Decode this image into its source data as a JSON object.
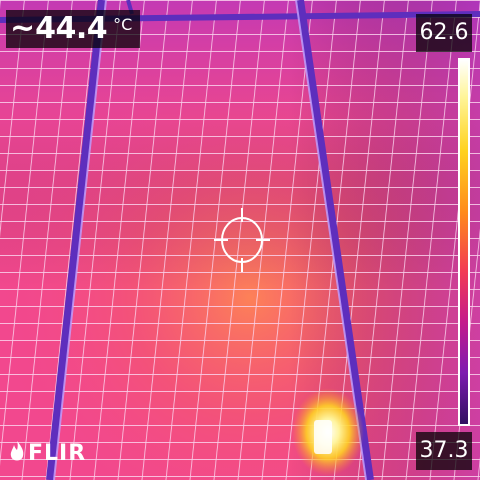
{
  "spot": {
    "prefix": "~",
    "value": "44.4",
    "unit": "°C"
  },
  "scale": {
    "max": "62.6",
    "min": "37.3"
  },
  "brand": {
    "name": "FLIR"
  },
  "colors": {
    "background": "#f64a8c",
    "grid": "#f8d9ee",
    "frame": "#5e2ebd",
    "hotspot": "#ffe34a"
  },
  "icons": {
    "crosshair": "crosshair-icon",
    "logo": "flir-flame-icon"
  }
}
